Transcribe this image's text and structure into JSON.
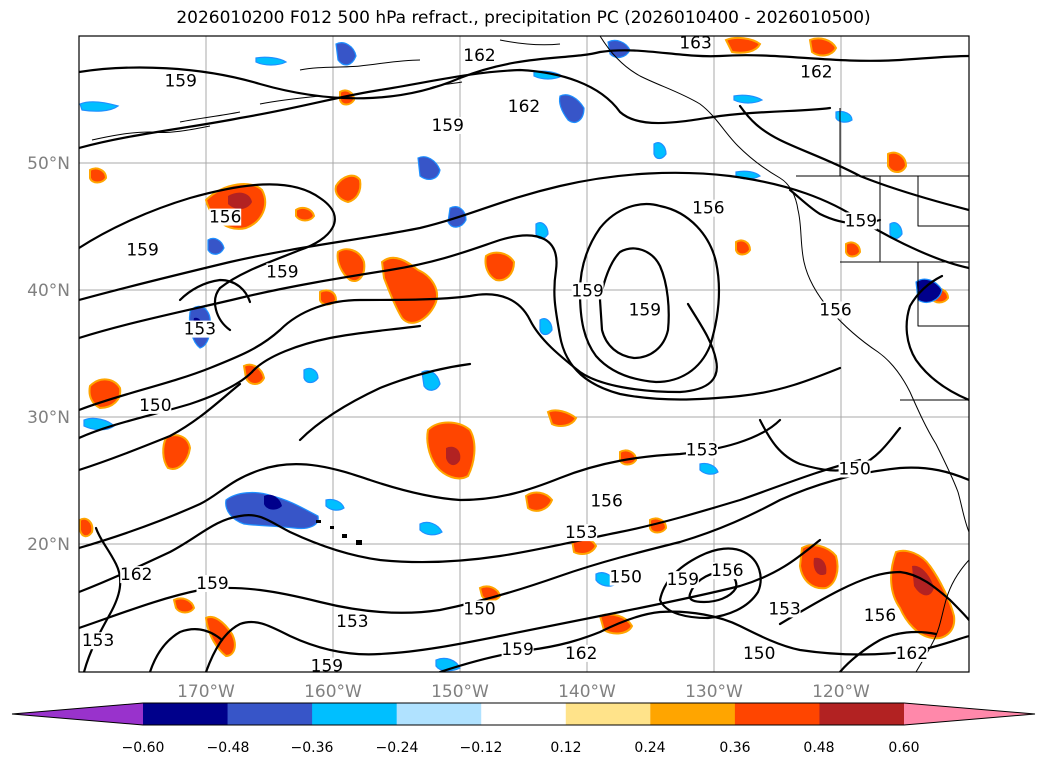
{
  "title": "2026010200 F012 500 hPa refract., precipitation PC (2026010400 - 2026010500)",
  "map": {
    "lon_labels": [
      "170°W",
      "160°W",
      "150°W",
      "140°W",
      "130°W",
      "120°W"
    ],
    "lat_labels": [
      "50°N",
      "40°N",
      "30°N",
      "20°N"
    ],
    "contour_labels": [
      {
        "text": "159",
        "lon": -172.0,
        "lat": 56.5
      },
      {
        "text": "162",
        "lon": -148.5,
        "lat": 58.5
      },
      {
        "text": "162",
        "lon": -145.0,
        "lat": 54.5
      },
      {
        "text": "159",
        "lon": -151.0,
        "lat": 53.0
      },
      {
        "text": "163",
        "lon": -131.5,
        "lat": 59.5
      },
      {
        "text": "162",
        "lon": -122.0,
        "lat": 57.2
      },
      {
        "text": "156",
        "lon": -130.5,
        "lat": 46.5
      },
      {
        "text": "159",
        "lon": -118.5,
        "lat": 45.5
      },
      {
        "text": "156",
        "lon": -168.5,
        "lat": 45.8
      },
      {
        "text": "159",
        "lon": -175.0,
        "lat": 43.2
      },
      {
        "text": "159",
        "lon": -164.0,
        "lat": 41.5
      },
      {
        "text": "159",
        "lon": -140.0,
        "lat": 40.0
      },
      {
        "text": "159",
        "lon": -135.5,
        "lat": 38.5
      },
      {
        "text": "156",
        "lon": -120.5,
        "lat": 38.5
      },
      {
        "text": "153",
        "lon": -170.5,
        "lat": 37.0
      },
      {
        "text": "150",
        "lon": -174.0,
        "lat": 31.0
      },
      {
        "text": "153",
        "lon": -131.0,
        "lat": 27.5
      },
      {
        "text": "150",
        "lon": -119.0,
        "lat": 26.0
      },
      {
        "text": "156",
        "lon": -138.5,
        "lat": 23.5
      },
      {
        "text": "153",
        "lon": -140.5,
        "lat": 21.0
      },
      {
        "text": "162",
        "lon": -175.5,
        "lat": 17.7
      },
      {
        "text": "159",
        "lon": -169.5,
        "lat": 17.0
      },
      {
        "text": "150",
        "lon": -137.0,
        "lat": 17.5
      },
      {
        "text": "159",
        "lon": -132.5,
        "lat": 17.3
      },
      {
        "text": "156",
        "lon": -129.0,
        "lat": 18.0
      },
      {
        "text": "150",
        "lon": -148.5,
        "lat": 15.0
      },
      {
        "text": "153",
        "lon": -158.5,
        "lat": 14.0
      },
      {
        "text": "153",
        "lon": -124.5,
        "lat": 15.0
      },
      {
        "text": "156",
        "lon": -117.0,
        "lat": 14.5
      },
      {
        "text": "159",
        "lon": -145.5,
        "lat": 11.8
      },
      {
        "text": "162",
        "lon": -140.5,
        "lat": 11.5
      },
      {
        "text": "150",
        "lon": -126.5,
        "lat": 11.5
      },
      {
        "text": "162",
        "lon": -114.5,
        "lat": 11.5
      },
      {
        "text": "159",
        "lon": -160.5,
        "lat": 10.5
      },
      {
        "text": "153",
        "lon": -178.5,
        "lat": 12.5
      }
    ]
  },
  "colorbar": {
    "ticks": [
      "−0.60",
      "−0.48",
      "−0.36",
      "−0.24",
      "−0.12",
      "0.12",
      "0.24",
      "0.36",
      "0.48",
      "0.60"
    ],
    "colors": [
      "#9932cc",
      "#00008b",
      "#3755c8",
      "#00bfff",
      "#b0e2ff",
      "#ffffff",
      "#ffe38a",
      "#ffa500",
      "#ff4500",
      "#b22222",
      "#ff88aa"
    ]
  }
}
